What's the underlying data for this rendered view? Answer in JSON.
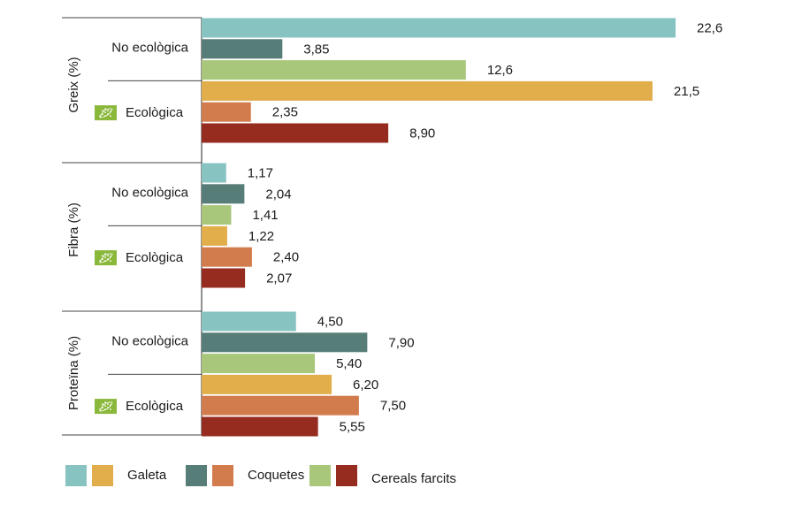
{
  "chart_data": {
    "type": "bar",
    "orientation": "horizontal",
    "xlim": [
      0,
      23
    ],
    "grid": false,
    "legend_position": "bottom-left",
    "groups": [
      {
        "label": "Greix (%)",
        "subgroups": [
          {
            "label": "No ecològica",
            "organic": false,
            "values": [
              22.6,
              3.85,
              12.6
            ],
            "value_labels": [
              "22,6",
              "3,85",
              "12,6"
            ]
          },
          {
            "label": "Ecològica",
            "organic": true,
            "values": [
              21.5,
              2.35,
              8.9
            ],
            "value_labels": [
              "21,5",
              "2,35",
              "8,90"
            ]
          }
        ]
      },
      {
        "label": "Fibra (%)",
        "subgroups": [
          {
            "label": "No ecològica",
            "organic": false,
            "values": [
              1.17,
              2.04,
              1.41
            ],
            "value_labels": [
              "1,17",
              "2,04",
              "1,41"
            ]
          },
          {
            "label": "Ecològica",
            "organic": true,
            "values": [
              1.22,
              2.4,
              2.07
            ],
            "value_labels": [
              "1,22",
              "2,40",
              "2,07"
            ]
          }
        ]
      },
      {
        "label": "Proteïna (%)",
        "subgroups": [
          {
            "label": "No ecològica",
            "organic": false,
            "values": [
              4.5,
              7.9,
              5.4
            ],
            "value_labels": [
              "4,50",
              "7,90",
              "5,40"
            ]
          },
          {
            "label": "Ecològica",
            "organic": true,
            "values": [
              6.2,
              7.5,
              5.55
            ],
            "value_labels": [
              "6,20",
              "7,50",
              "5,55"
            ]
          }
        ]
      }
    ],
    "series": [
      {
        "name": "Galeta",
        "color_no_eco": "#86c3c1",
        "color_eco": "#e2ae4c"
      },
      {
        "name": "Coquetes",
        "color_no_eco": "#577d78",
        "color_eco": "#d27b4d"
      },
      {
        "name": "Cereals farcits",
        "color_no_eco": "#a8c77b",
        "color_eco": "#962b1f"
      }
    ],
    "organic_icon": "eu-organic-leaf-icon",
    "organic_icon_color": "#8ab83b"
  }
}
